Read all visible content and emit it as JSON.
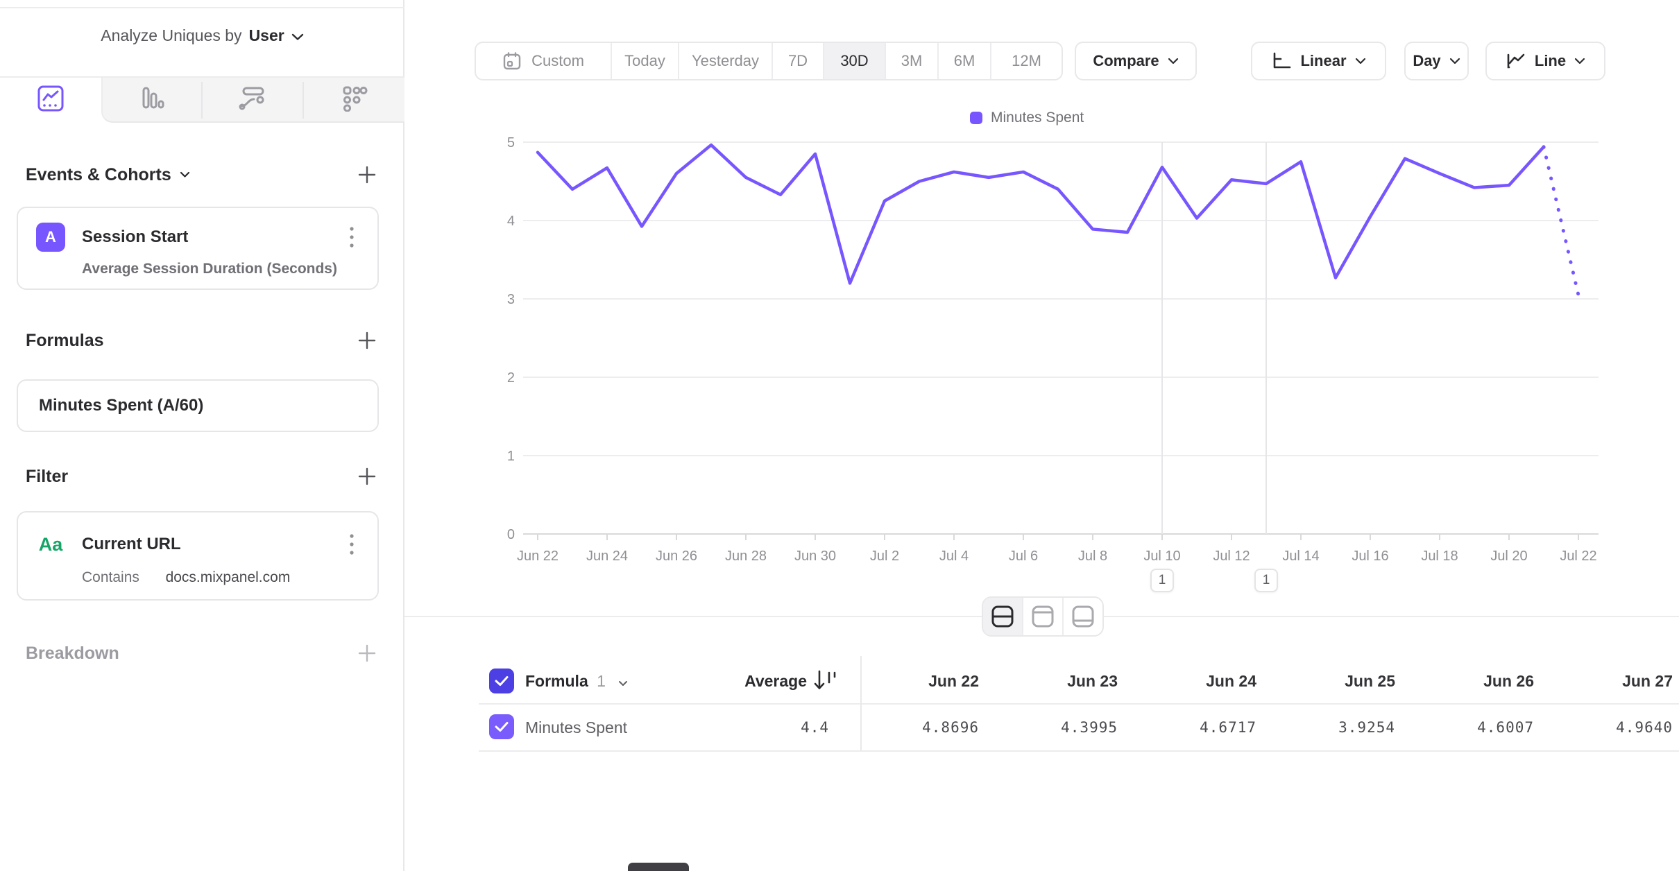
{
  "sidebar": {
    "analyze_label": "Analyze Uniques by",
    "analyze_value": "User",
    "chart_type_tabs": [
      "line-chart",
      "bar-chart",
      "flow",
      "metric"
    ],
    "active_tab": "line-chart",
    "sections": {
      "events": {
        "title": "Events & Cohorts"
      },
      "event_card": {
        "badge": "A",
        "title": "Session Start",
        "subtitle": "Average Session Duration (Seconds)"
      },
      "formulas": {
        "title": "Formulas"
      },
      "formula_card": {
        "title": "Minutes Spent (A/60)"
      },
      "filter": {
        "title": "Filter"
      },
      "filter_card": {
        "icon": "Aa",
        "title": "Current URL",
        "operator": "Contains",
        "value": "docs.mixpanel.com"
      },
      "breakdown": {
        "title": "Breakdown"
      }
    }
  },
  "toolbar": {
    "date_ranges": [
      "Custom",
      "Today",
      "Yesterday",
      "7D",
      "30D",
      "3M",
      "6M",
      "12M"
    ],
    "active_range": "30D",
    "compare_label": "Compare",
    "scale_label": "Linear",
    "granularity_label": "Day",
    "chart_type_label": "Line"
  },
  "chart_data": {
    "type": "line",
    "title": "",
    "legend": [
      "Minutes Spent"
    ],
    "legend_position": "top-center",
    "line_color": "#7856ff",
    "ylim": [
      0,
      5
    ],
    "yticks": [
      0,
      1,
      2,
      3,
      4,
      5
    ],
    "grid": "horizontal",
    "x_tick_labels": [
      "Jun 22",
      "Jun 24",
      "Jun 26",
      "Jun 28",
      "Jun 30",
      "Jul 2",
      "Jul 4",
      "Jul 6",
      "Jul 8",
      "Jul 10",
      "Jul 12",
      "Jul 14",
      "Jul 16",
      "Jul 18",
      "Jul 20",
      "Jul 22"
    ],
    "series": [
      {
        "name": "Minutes Spent",
        "x": [
          "Jun 22",
          "Jun 23",
          "Jun 24",
          "Jun 25",
          "Jun 26",
          "Jun 27",
          "Jun 28",
          "Jun 29",
          "Jun 30",
          "Jul 1",
          "Jul 2",
          "Jul 3",
          "Jul 4",
          "Jul 5",
          "Jul 6",
          "Jul 7",
          "Jul 8",
          "Jul 9",
          "Jul 10",
          "Jul 11",
          "Jul 12",
          "Jul 13",
          "Jul 14",
          "Jul 15",
          "Jul 16",
          "Jul 17",
          "Jul 18",
          "Jul 19",
          "Jul 20",
          "Jul 21",
          "Jul 22"
        ],
        "values": [
          4.8696,
          4.3995,
          4.6717,
          3.9254,
          4.6007,
          4.964,
          4.55,
          4.33,
          4.85,
          3.2,
          4.25,
          4.5,
          4.62,
          4.55,
          4.62,
          4.4,
          3.89,
          3.85,
          4.68,
          4.03,
          4.52,
          4.47,
          4.75,
          3.27,
          4.05,
          4.79,
          4.6,
          4.42,
          4.45,
          4.94,
          3.05
        ]
      }
    ],
    "last_segment_dotted": true,
    "annotations": [
      {
        "x": "Jul 10",
        "count": "1"
      },
      {
        "x": "Jul 13",
        "count": "1"
      }
    ]
  },
  "table": {
    "name_header": "Formula",
    "name_header_number": "1",
    "average_header": "Average",
    "columns": [
      "Jun 22",
      "Jun 23",
      "Jun 24",
      "Jun 25",
      "Jun 26",
      "Jun 27"
    ],
    "rows": [
      {
        "name": "Minutes Spent",
        "average": "4.4",
        "values": [
          "4.8696",
          "4.3995",
          "4.6717",
          "3.9254",
          "4.6007",
          "4.9640"
        ]
      }
    ]
  },
  "colors": {
    "accent_purple": "#7856ff",
    "checkbox_indigo": "#4c3fe4",
    "green_property": "#17a567",
    "text_dark": "#2b2b2f",
    "text_gray": "#8f8f94",
    "border": "#e8e8ea"
  }
}
